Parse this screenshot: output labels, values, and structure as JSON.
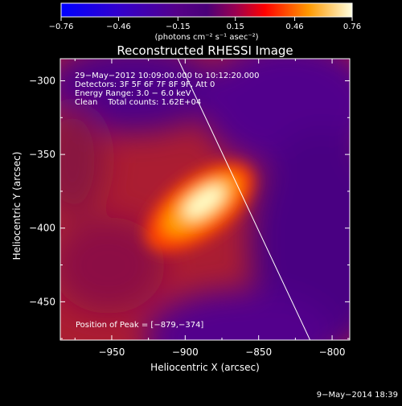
{
  "colorbar": {
    "ticks": [
      "−0.76",
      "−0.46",
      "−0.15",
      "0.15",
      "0.46",
      "0.76"
    ],
    "tick_values": [
      -0.76,
      -0.46,
      -0.15,
      0.15,
      0.46,
      0.76
    ],
    "range": [
      -0.76,
      0.76
    ],
    "units": "(photons cm⁻² s⁻¹ asec⁻²)"
  },
  "plot": {
    "title": "Reconstructed RHESSI Image",
    "info_lines": [
      "29−May−2012 10:09:00.000 to 10:12:20.000",
      "Detectors: 3F 5F 6F 7F 8F 9F, Att 0",
      "Energy Range: 3.0 − 6.0 keV",
      "Clean    Total counts: 1.62E+04"
    ],
    "peak_label": "Position of Peak = [−879,−374]",
    "xlabel": "Heliocentric X (arcsec)",
    "ylabel": "Heliocentric Y (arcsec)",
    "xticks": [
      "−950",
      "−900",
      "−850",
      "−800"
    ],
    "yticks": [
      "−300",
      "−350",
      "−400",
      "−450"
    ],
    "xtick_values": [
      -950,
      -900,
      -850,
      -800
    ],
    "ytick_values": [
      -300,
      -350,
      -400,
      -450
    ],
    "xlim": [
      -985,
      -788
    ],
    "ylim": [
      -476,
      -285
    ],
    "peak": [
      -879,
      -374
    ],
    "limb_line": [
      [
        -905,
        -285
      ],
      [
        -815,
        -476
      ]
    ]
  },
  "footer": {
    "timestamp": "9−May−2014 18:39"
  },
  "colors": {
    "background": "#000000",
    "foreground": "#ffffff"
  }
}
